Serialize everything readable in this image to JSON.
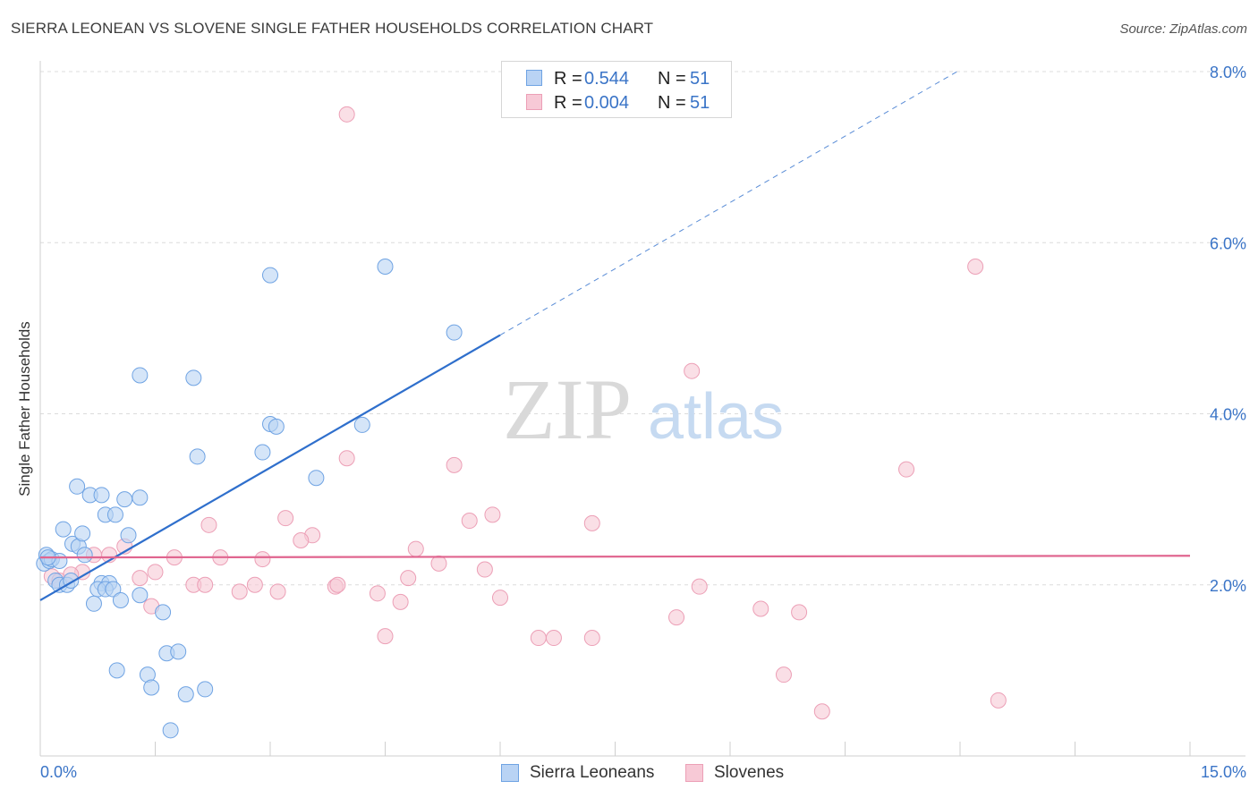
{
  "header": {
    "title": "SIERRA LEONEAN VS SLOVENE SINGLE FATHER HOUSEHOLDS CORRELATION CHART",
    "source": "Source: ZipAtlas.com"
  },
  "legend_top": {
    "rows": [
      {
        "r_label": "R =",
        "r_value": "0.544",
        "n_label": "N =",
        "n_value": "51"
      },
      {
        "r_label": "R =",
        "r_value": "0.004",
        "n_label": "N =",
        "n_value": "51"
      }
    ]
  },
  "legend_bottom": {
    "items": [
      {
        "label": "Sierra Leoneans"
      },
      {
        "label": "Slovenes"
      }
    ]
  },
  "watermark": {
    "part1": "ZIP",
    "part2": "atlas"
  },
  "chart_data": {
    "type": "scatter",
    "title": "SIERRA LEONEAN VS SLOVENE SINGLE FATHER HOUSEHOLDS CORRELATION CHART",
    "xlabel": "",
    "ylabel": "Single Father Households",
    "xlim": [
      0,
      15
    ],
    "ylim": [
      0,
      8.0
    ],
    "x_tick_labels": [
      "0.0%",
      "15.0%"
    ],
    "y_ticks": [
      2.0,
      4.0,
      6.0,
      8.0
    ],
    "y_tick_labels": [
      "2.0%",
      "4.0%",
      "6.0%",
      "8.0%"
    ],
    "grid": "horizontal dashed",
    "legend_position": "top-center",
    "colors": {
      "sierra_leoneans": "#6fa3e3",
      "sierra_leoneans_fill": "#b9d3f4",
      "sierra_leoneans_line": "#2f6fcc",
      "slovenes": "#ec9fb6",
      "slovenes_fill": "#f7c9d6",
      "slovenes_line": "#e0658f",
      "axis_text": "#3a74c7"
    },
    "series": [
      {
        "name": "Sierra Leoneans",
        "points": [
          [
            0.05,
            2.25
          ],
          [
            0.08,
            2.35
          ],
          [
            0.12,
            2.28
          ],
          [
            0.15,
            2.3
          ],
          [
            0.25,
            2.28
          ],
          [
            0.2,
            2.05
          ],
          [
            0.25,
            2.0
          ],
          [
            0.35,
            2.0
          ],
          [
            0.4,
            2.05
          ],
          [
            0.3,
            2.65
          ],
          [
            0.42,
            2.48
          ],
          [
            0.5,
            2.45
          ],
          [
            0.55,
            2.6
          ],
          [
            0.58,
            2.35
          ],
          [
            0.48,
            3.15
          ],
          [
            0.65,
            3.05
          ],
          [
            0.8,
            3.05
          ],
          [
            0.85,
            2.82
          ],
          [
            0.98,
            2.82
          ],
          [
            1.1,
            3.0
          ],
          [
            1.3,
            3.02
          ],
          [
            1.15,
            2.58
          ],
          [
            0.8,
            2.02
          ],
          [
            0.9,
            2.02
          ],
          [
            0.75,
            1.95
          ],
          [
            0.85,
            1.95
          ],
          [
            0.95,
            1.95
          ],
          [
            0.7,
            1.78
          ],
          [
            1.05,
            1.82
          ],
          [
            1.3,
            1.88
          ],
          [
            1.6,
            1.68
          ],
          [
            1.65,
            1.2
          ],
          [
            1.8,
            1.22
          ],
          [
            1.0,
            1.0
          ],
          [
            1.4,
            0.95
          ],
          [
            1.45,
            0.8
          ],
          [
            1.9,
            0.72
          ],
          [
            2.15,
            0.78
          ],
          [
            1.7,
            0.3
          ],
          [
            1.3,
            4.45
          ],
          [
            2.0,
            4.42
          ],
          [
            2.05,
            3.5
          ],
          [
            2.9,
            3.55
          ],
          [
            3.0,
            3.88
          ],
          [
            3.08,
            3.85
          ],
          [
            3.6,
            3.25
          ],
          [
            4.2,
            3.87
          ],
          [
            3.0,
            5.62
          ],
          [
            4.5,
            5.72
          ],
          [
            5.4,
            4.95
          ],
          [
            0.1,
            2.32
          ]
        ]
      },
      {
        "name": "Slovenes",
        "points": [
          [
            4.0,
            7.5
          ],
          [
            12.2,
            5.72
          ],
          [
            8.5,
            4.5
          ],
          [
            11.3,
            3.35
          ],
          [
            4.0,
            3.48
          ],
          [
            5.4,
            3.4
          ],
          [
            5.9,
            2.82
          ],
          [
            5.6,
            2.75
          ],
          [
            7.2,
            2.72
          ],
          [
            2.2,
            2.7
          ],
          [
            3.2,
            2.78
          ],
          [
            3.55,
            2.58
          ],
          [
            3.4,
            2.52
          ],
          [
            4.9,
            2.42
          ],
          [
            5.2,
            2.25
          ],
          [
            5.8,
            2.18
          ],
          [
            2.35,
            2.32
          ],
          [
            2.9,
            2.3
          ],
          [
            1.75,
            2.32
          ],
          [
            0.55,
            2.15
          ],
          [
            1.5,
            2.15
          ],
          [
            1.3,
            2.08
          ],
          [
            4.8,
            2.08
          ],
          [
            2.0,
            2.0
          ],
          [
            2.15,
            2.0
          ],
          [
            2.8,
            2.0
          ],
          [
            3.1,
            1.92
          ],
          [
            2.6,
            1.92
          ],
          [
            3.85,
            1.98
          ],
          [
            3.88,
            2.0
          ],
          [
            4.4,
            1.9
          ],
          [
            4.7,
            1.8
          ],
          [
            6.0,
            1.85
          ],
          [
            8.6,
            1.98
          ],
          [
            1.45,
            1.75
          ],
          [
            9.4,
            1.72
          ],
          [
            9.9,
            1.68
          ],
          [
            8.3,
            1.62
          ],
          [
            4.5,
            1.4
          ],
          [
            6.7,
            1.38
          ],
          [
            6.5,
            1.38
          ],
          [
            7.2,
            1.38
          ],
          [
            9.7,
            0.95
          ],
          [
            12.5,
            0.65
          ],
          [
            10.2,
            0.52
          ],
          [
            0.15,
            2.1
          ],
          [
            0.25,
            2.05
          ],
          [
            0.7,
            2.35
          ],
          [
            0.9,
            2.35
          ],
          [
            1.1,
            2.45
          ],
          [
            0.4,
            2.12
          ]
        ]
      }
    ],
    "trend_lines": [
      {
        "name": "Sierra Leoneans",
        "x1": 0.0,
        "y1": 1.82,
        "x2": 6.0,
        "y2": 4.92,
        "dashed_to_x": 12.0,
        "dashed_to_y": 8.02
      },
      {
        "name": "Slovenes",
        "x1": 0.0,
        "y1": 2.32,
        "x2": 15.0,
        "y2": 2.34
      }
    ]
  }
}
